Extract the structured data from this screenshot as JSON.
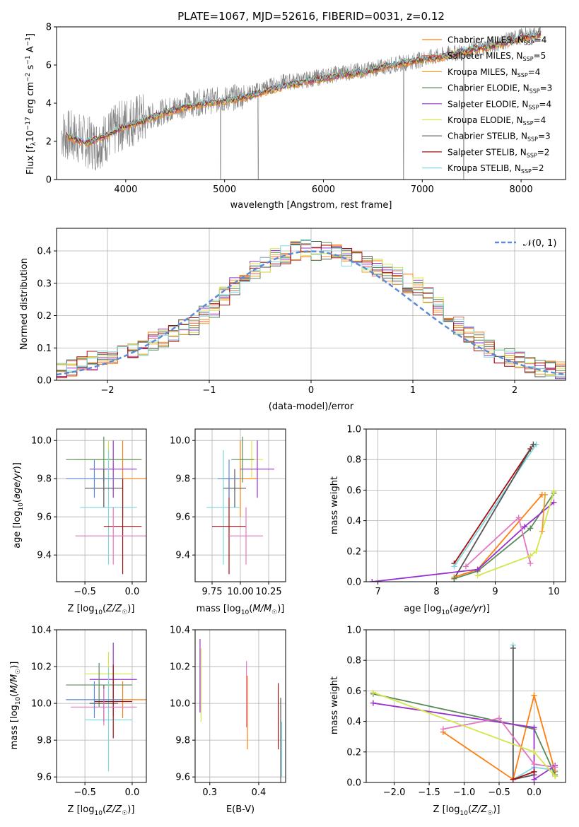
{
  "chart_data": [
    {
      "type": "line",
      "title": "PLATE=1067, MJD=52616, FIBERID=0031, z=0.12",
      "xlabel": "wavelength [Angstrom, rest frame]",
      "ylabel": "Flux [f_λ 10^-17 erg cm^-2 s^-1 A^-1]",
      "xlim": [
        3300,
        8450
      ],
      "ylim": [
        0,
        8
      ],
      "xticks": [
        4000,
        5000,
        6000,
        7000,
        8000
      ],
      "yticks": [
        0,
        2,
        4,
        6,
        8
      ],
      "grid": false,
      "legend": "top-right",
      "data_series": {
        "name": "data",
        "color": "#808080",
        "x": [
          3350,
          3500,
          3700,
          3900,
          4000,
          4200,
          4400,
          4600,
          4800,
          5000,
          5200,
          5400,
          5600,
          5800,
          6000,
          6200,
          6400,
          6600,
          6800,
          7000,
          7200,
          7400,
          7600,
          7800,
          8000,
          8200
        ],
        "y": [
          2.4,
          2.2,
          1.8,
          2.6,
          3.0,
          3.2,
          3.6,
          3.9,
          4.1,
          4.2,
          4.4,
          4.8,
          5.1,
          5.2,
          5.4,
          5.6,
          5.7,
          5.9,
          6.1,
          6.3,
          6.5,
          6.7,
          6.9,
          7.2,
          7.5,
          7.6
        ]
      },
      "series": [
        {
          "name": "Chabrier MILES, N_SSP=4",
          "color": "#ff7f0e"
        },
        {
          "name": "Salpeter MILES, N_SSP=5",
          "color": "#e06a4e"
        },
        {
          "name": "Kroupa MILES, N_SSP=4",
          "color": "#f0a030"
        },
        {
          "name": "Chabrier ELODIE, N_SSP=3",
          "color": "#5a8a5a"
        },
        {
          "name": "Salpeter ELODIE, N_SSP=4",
          "color": "#9932cc"
        },
        {
          "name": "Kroupa ELODIE, N_SSP=4",
          "color": "#d4e64a"
        },
        {
          "name": "Chabrier STELIB, N_SSP=3",
          "color": "#555555"
        },
        {
          "name": "Salpeter STELIB, N_SSP=2",
          "color": "#a01010"
        },
        {
          "name": "Kroupa STELIB, N_SSP=2",
          "color": "#7fd8e0"
        }
      ],
      "model": {
        "x": [
          3400,
          3600,
          3800,
          4000,
          4200,
          4400,
          4600,
          4800,
          5000,
          5200,
          5400,
          5600,
          5800,
          6000,
          6200,
          6400,
          6600,
          6800,
          7000,
          7200,
          7400,
          7600,
          7800,
          8000,
          8200
        ],
        "y": [
          2.3,
          1.9,
          2.3,
          2.8,
          3.1,
          3.5,
          3.8,
          4.0,
          4.1,
          4.3,
          4.6,
          4.9,
          5.1,
          5.3,
          5.5,
          5.6,
          5.9,
          6.1,
          6.3,
          6.4,
          6.7,
          6.9,
          7.1,
          7.4,
          7.6
        ]
      }
    },
    {
      "type": "bar",
      "xlabel": "(data-model)/error",
      "ylabel": "Normed distribution",
      "xlim": [
        -2.5,
        2.5
      ],
      "ylim": [
        0,
        0.47
      ],
      "xticks": [
        -2,
        -1,
        0,
        1,
        2
      ],
      "yticks": [
        0.0,
        0.1,
        0.2,
        0.3,
        0.4
      ],
      "grid": true,
      "legend": "top-right",
      "legend_label": "𝒩(0, 1)",
      "gauss_color": "#5b8bd6",
      "histogram": {
        "bins_start": -2.5,
        "bin_width": 0.1,
        "values": [
          0.03,
          0.04,
          0.05,
          0.06,
          0.07,
          0.08,
          0.09,
          0.09,
          0.1,
          0.12,
          0.13,
          0.14,
          0.16,
          0.17,
          0.2,
          0.22,
          0.26,
          0.29,
          0.31,
          0.34,
          0.36,
          0.38,
          0.39,
          0.4,
          0.41,
          0.4,
          0.4,
          0.39,
          0.38,
          0.37,
          0.36,
          0.35,
          0.33,
          0.32,
          0.3,
          0.29,
          0.26,
          0.23,
          0.2,
          0.17,
          0.14,
          0.12,
          0.1,
          0.08,
          0.07,
          0.06,
          0.05,
          0.04,
          0.04,
          0.03
        ]
      }
    },
    {
      "type": "scatter",
      "xlabel": "Z [log10(Z/Z☉)]",
      "ylabel": "age  [log10(age/yr)]",
      "xlim": [
        -0.8,
        0.15
      ],
      "ylim": [
        9.26,
        10.06
      ],
      "xticks": [
        -0.5,
        0.0
      ],
      "yticks": [
        9.4,
        9.6,
        9.8,
        10.0
      ],
      "grid": true,
      "points": [
        {
          "x": -0.1,
          "y": 9.8,
          "xerr": 0.3,
          "yerr": 0.2,
          "color": "#ff7f0e"
        },
        {
          "x": -0.25,
          "y": 9.9,
          "xerr": 0.35,
          "yerr": 0.1,
          "color": "#d4e64a"
        },
        {
          "x": -0.2,
          "y": 9.85,
          "xerr": 0.25,
          "yerr": 0.15,
          "color": "#9932cc"
        },
        {
          "x": -0.3,
          "y": 9.9,
          "xerr": 0.4,
          "yerr": 0.12,
          "color": "#5a8a5a"
        },
        {
          "x": -0.25,
          "y": 9.65,
          "xerr": 0.3,
          "yerr": 0.3,
          "color": "#7fd8e0"
        },
        {
          "x": -0.3,
          "y": 9.75,
          "xerr": 0.2,
          "yerr": 0.1,
          "color": "#555555"
        },
        {
          "x": -0.1,
          "y": 9.55,
          "xerr": 0.2,
          "yerr": 0.25,
          "color": "#a01010"
        },
        {
          "x": -0.2,
          "y": 9.5,
          "xerr": 0.4,
          "yerr": 0.15,
          "color": "#e377c2"
        },
        {
          "x": -0.4,
          "y": 9.8,
          "xerr": 0.3,
          "yerr": 0.1,
          "color": "#5b8bd6"
        }
      ]
    },
    {
      "type": "scatter",
      "xlabel": "mass [log10(M/M☉)]",
      "ylabel": "",
      "xlim": [
        9.6,
        10.4
      ],
      "ylim": [
        9.26,
        10.06
      ],
      "xticks": [
        9.75,
        10.0,
        10.25
      ],
      "xtick_labels": [
        "9.75",
        "10.00",
        "10.25"
      ],
      "yticks": [
        9.4,
        9.6,
        9.8,
        10.0
      ],
      "grid": true,
      "points": [
        {
          "x": 10.0,
          "y": 9.8,
          "xerr": 0.15,
          "yerr": 0.2,
          "color": "#ff7f0e"
        },
        {
          "x": 10.1,
          "y": 9.9,
          "xerr": 0.1,
          "yerr": 0.1,
          "color": "#d4e64a"
        },
        {
          "x": 10.15,
          "y": 9.85,
          "xerr": 0.15,
          "yerr": 0.15,
          "color": "#9932cc"
        },
        {
          "x": 10.02,
          "y": 9.9,
          "xerr": 0.1,
          "yerr": 0.12,
          "color": "#5a8a5a"
        },
        {
          "x": 9.85,
          "y": 9.65,
          "xerr": 0.15,
          "yerr": 0.3,
          "color": "#7fd8e0"
        },
        {
          "x": 9.95,
          "y": 9.75,
          "xerr": 0.1,
          "yerr": 0.1,
          "color": "#555555"
        },
        {
          "x": 9.9,
          "y": 9.55,
          "xerr": 0.15,
          "yerr": 0.25,
          "color": "#a01010"
        },
        {
          "x": 10.05,
          "y": 9.5,
          "xerr": 0.15,
          "yerr": 0.15,
          "color": "#e377c2"
        },
        {
          "x": 9.9,
          "y": 9.8,
          "xerr": 0.1,
          "yerr": 0.1,
          "color": "#5b8bd6"
        }
      ]
    },
    {
      "type": "line",
      "xlabel": "age  [log10(age/yr)]",
      "ylabel": "mass weight",
      "xlim": [
        6.8,
        10.2
      ],
      "ylim": [
        0,
        1.0
      ],
      "xticks": [
        7,
        8,
        9,
        10
      ],
      "yticks": [
        0.0,
        0.2,
        0.4,
        0.6,
        0.8,
        1.0
      ],
      "grid": true,
      "lines": [
        {
          "color": "#a01010",
          "x": [
            8.3,
            9.6
          ],
          "y": [
            0.12,
            0.87
          ]
        },
        {
          "color": "#7fd8e0",
          "x": [
            8.3,
            9.7
          ],
          "y": [
            0.1,
            0.9
          ]
        },
        {
          "color": "#555555",
          "x": [
            8.3,
            9.65
          ],
          "y": [
            0.02,
            0.9
          ]
        },
        {
          "color": "#ff7f0e",
          "x": [
            8.3,
            8.7,
            9.8
          ],
          "y": [
            0.03,
            0.08,
            0.57
          ]
        },
        {
          "color": "#5a8a5a",
          "x": [
            8.3,
            8.7,
            9.6,
            10.0
          ],
          "y": [
            0.02,
            0.07,
            0.35,
            0.58
          ]
        },
        {
          "color": "#9932cc",
          "x": [
            6.9,
            8.7,
            9.5,
            10.0
          ],
          "y": [
            0.0,
            0.08,
            0.36,
            0.52
          ]
        },
        {
          "color": "#e377c2",
          "x": [
            8.5,
            9.4,
            9.6
          ],
          "y": [
            0.1,
            0.42,
            0.12
          ]
        },
        {
          "color": "#d4e64a",
          "x": [
            8.7,
            9.6,
            9.7,
            10.0
          ],
          "y": [
            0.04,
            0.17,
            0.2,
            0.59
          ]
        },
        {
          "color": "#f0a030",
          "x": [
            9.8,
            9.85
          ],
          "y": [
            0.33,
            0.57
          ]
        }
      ]
    },
    {
      "type": "scatter",
      "xlabel": "Z [log10(Z/Z☉)]",
      "ylabel": "mass [log10(M/M☉)]",
      "xlim": [
        -0.8,
        0.15
      ],
      "ylim": [
        9.57,
        10.4
      ],
      "xticks": [
        -0.5,
        0.0
      ],
      "yticks": [
        9.6,
        9.8,
        10.0,
        10.2,
        10.4
      ],
      "grid": true,
      "points": [
        {
          "x": -0.1,
          "y": 10.02,
          "xerr": 0.3,
          "yerr": 0.1,
          "color": "#ff7f0e"
        },
        {
          "x": -0.25,
          "y": 10.16,
          "xerr": 0.25,
          "yerr": 0.12,
          "color": "#d4e64a"
        },
        {
          "x": -0.2,
          "y": 10.13,
          "xerr": 0.25,
          "yerr": 0.2,
          "color": "#9932cc"
        },
        {
          "x": -0.35,
          "y": 10.1,
          "xerr": 0.35,
          "yerr": 0.12,
          "color": "#5a8a5a"
        },
        {
          "x": -0.25,
          "y": 9.91,
          "xerr": 0.25,
          "yerr": 0.28,
          "color": "#7fd8e0"
        },
        {
          "x": -0.3,
          "y": 10.0,
          "xerr": 0.15,
          "yerr": 0.1,
          "color": "#555555"
        },
        {
          "x": -0.2,
          "y": 10.01,
          "xerr": 0.2,
          "yerr": 0.2,
          "color": "#a01010"
        },
        {
          "x": -0.3,
          "y": 9.98,
          "xerr": 0.35,
          "yerr": 0.1,
          "color": "#e377c2"
        },
        {
          "x": -0.4,
          "y": 10.02,
          "xerr": 0.3,
          "yerr": 0.1,
          "color": "#5b8bd6"
        }
      ]
    },
    {
      "type": "scatter",
      "xlabel": "E(B-V)",
      "ylabel": "",
      "xlim": [
        0.27,
        0.455
      ],
      "ylim": [
        9.57,
        10.4
      ],
      "xticks": [
        0.3,
        0.4
      ],
      "yticks": [
        9.6,
        9.8,
        10.0,
        10.2,
        10.4
      ],
      "grid": true,
      "points": [
        {
          "x": 0.28,
          "y": 10.15,
          "yerr": 0.2,
          "color": "#9932cc"
        },
        {
          "x": 0.282,
          "y": 10.1,
          "yerr": 0.2,
          "color": "#d4e64a"
        },
        {
          "x": 0.375,
          "y": 10.05,
          "yerr": 0.18,
          "color": "#e377c2"
        },
        {
          "x": 0.377,
          "y": 9.95,
          "yerr": 0.2,
          "color": "#ff7f0e"
        },
        {
          "x": 0.44,
          "y": 9.93,
          "yerr": 0.18,
          "color": "#a01010"
        },
        {
          "x": 0.445,
          "y": 9.8,
          "yerr": 0.23,
          "color": "#555555"
        },
        {
          "x": 0.447,
          "y": 9.75,
          "yerr": 0.15,
          "color": "#7fd8e0"
        }
      ]
    },
    {
      "type": "line",
      "xlabel": "Z [log10(Z/Z☉)]",
      "ylabel": "mass weight",
      "xlim": [
        -2.4,
        0.45
      ],
      "ylim": [
        0,
        1.0
      ],
      "xticks": [
        -2.0,
        -1.5,
        -1.0,
        -0.5,
        0.0
      ],
      "yticks": [
        0.0,
        0.2,
        0.4,
        0.6,
        0.8,
        1.0
      ],
      "grid": true,
      "lines": [
        {
          "color": "#7fd8e0",
          "x": [
            -0.3,
            -0.3,
            0.0,
            0.3
          ],
          "y": [
            0.9,
            0.02,
            0.1,
            0.08
          ]
        },
        {
          "color": "#555555",
          "x": [
            -0.3,
            -0.3,
            0.0
          ],
          "y": [
            0.88,
            0.02,
            0.05
          ]
        },
        {
          "color": "#ff7f0e",
          "x": [
            -1.3,
            -0.3,
            0.0,
            0.3
          ],
          "y": [
            0.33,
            0.02,
            0.57,
            0.07
          ]
        },
        {
          "color": "#5a8a5a",
          "x": [
            -2.3,
            0.0,
            0.3
          ],
          "y": [
            0.58,
            0.35,
            0.05
          ]
        },
        {
          "color": "#9932cc",
          "x": [
            -2.3,
            0.0,
            0.0,
            0.3
          ],
          "y": [
            0.52,
            0.36,
            0.02,
            0.11
          ]
        },
        {
          "color": "#e377c2",
          "x": [
            -1.3,
            -0.5,
            0.0,
            0.3
          ],
          "y": [
            0.35,
            0.42,
            0.12,
            0.1
          ]
        },
        {
          "color": "#d4e64a",
          "x": [
            -2.3,
            0.0,
            0.3
          ],
          "y": [
            0.59,
            0.2,
            0.04
          ]
        },
        {
          "color": "#a01010",
          "x": [
            -0.3,
            0.0
          ],
          "y": [
            0.02,
            0.07
          ]
        }
      ]
    }
  ]
}
